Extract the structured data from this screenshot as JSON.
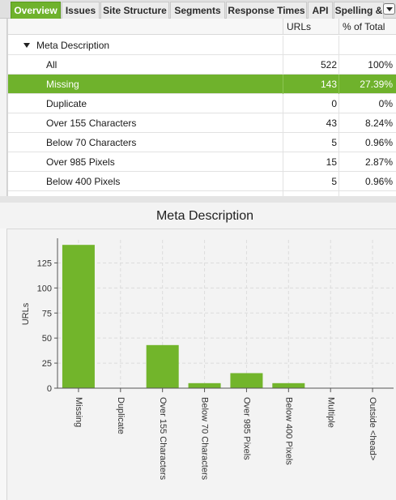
{
  "tabs": [
    {
      "label": "Overview",
      "active": true
    },
    {
      "label": "Issues",
      "active": false
    },
    {
      "label": "Site Structure",
      "active": false
    },
    {
      "label": "Segments",
      "active": false
    },
    {
      "label": "Response Times",
      "active": false
    },
    {
      "label": "API",
      "active": false
    },
    {
      "label": "Spelling &",
      "active": false
    }
  ],
  "table": {
    "headers": {
      "urls": "URLs",
      "pct": "% of Total"
    },
    "group": {
      "label": "Meta Description",
      "expanded": true
    },
    "rows": [
      {
        "label": "All",
        "urls": "522",
        "pct": "100%",
        "selected": false
      },
      {
        "label": "Missing",
        "urls": "143",
        "pct": "27.39%",
        "selected": true
      },
      {
        "label": "Duplicate",
        "urls": "0",
        "pct": "0%",
        "selected": false
      },
      {
        "label": "Over 155 Characters",
        "urls": "43",
        "pct": "8.24%",
        "selected": false
      },
      {
        "label": "Below 70 Characters",
        "urls": "5",
        "pct": "0.96%",
        "selected": false
      },
      {
        "label": "Over 985 Pixels",
        "urls": "15",
        "pct": "2.87%",
        "selected": false
      },
      {
        "label": "Below 400 Pixels",
        "urls": "5",
        "pct": "0.96%",
        "selected": false
      }
    ]
  },
  "colors": {
    "accent": "#6fb22c",
    "bar": "#72b52b"
  },
  "chart_data": {
    "type": "bar",
    "title": "Meta Description",
    "ylabel": "URLs",
    "xlabel": "",
    "categories": [
      "Missing",
      "Duplicate",
      "Over 155 Characters",
      "Below 70 Characters",
      "Over 985 Pixels",
      "Below 400 Pixels",
      "Multiple",
      "Outside <head>"
    ],
    "values": [
      143,
      0,
      43,
      5,
      15,
      5,
      0,
      0
    ],
    "ylim": [
      0,
      148
    ],
    "yticks": [
      0,
      25,
      50,
      75,
      100,
      125
    ],
    "grid": true
  }
}
